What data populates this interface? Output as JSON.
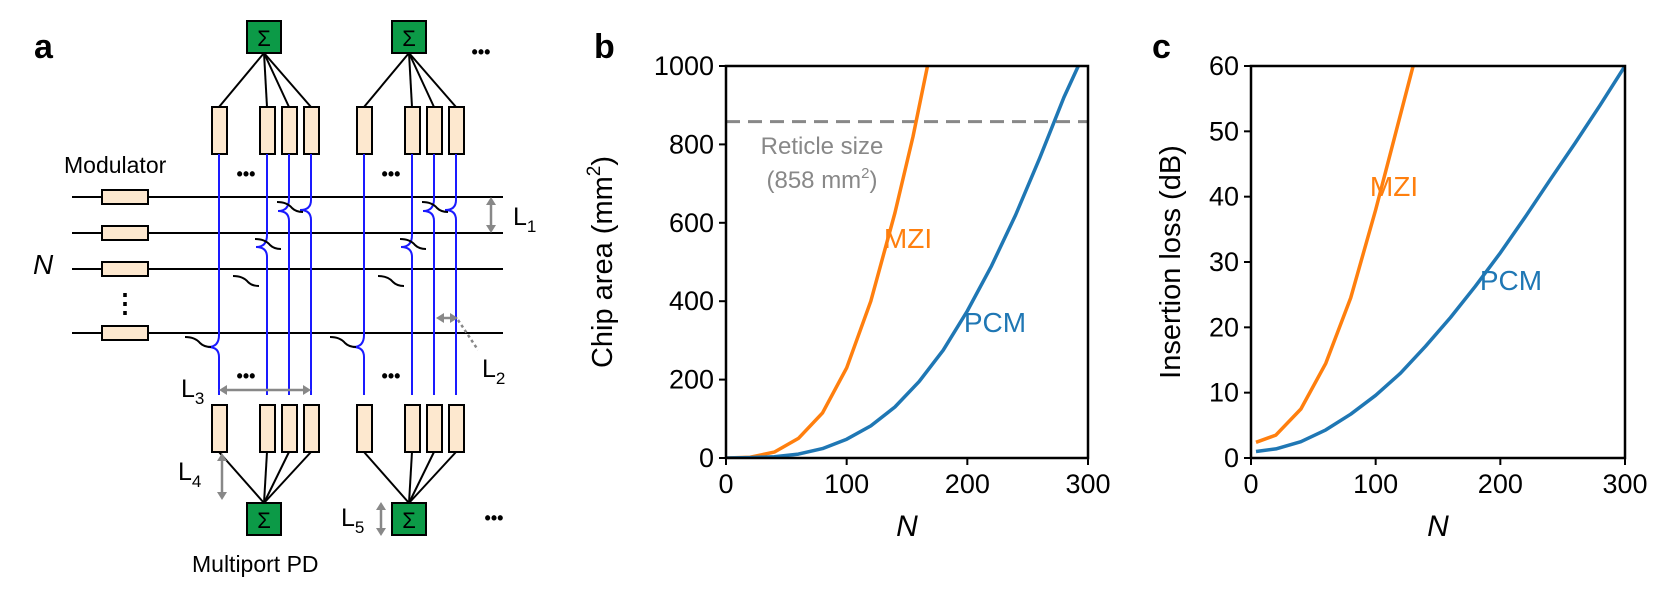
{
  "panels": {
    "a": {
      "label": "a",
      "modulator_label": "Modulator",
      "n_label": "N",
      "vdots": "⋮",
      "ellipsis": "•••",
      "l1_main": "L",
      "l1_sub": "1",
      "l2_main": "L",
      "l2_sub": "2",
      "l3_main": "L",
      "l3_sub": "3",
      "l4_main": "L",
      "l4_sub": "4",
      "l5_main": "L",
      "l5_sub": "5",
      "sum_symbol": "Σ",
      "pd_label": "Multiport PD"
    },
    "b": {
      "label": "b"
    },
    "c": {
      "label": "c"
    }
  },
  "colors": {
    "mzi": "#ff7f0e",
    "pcm": "#1f77b4",
    "reticle": "#888888",
    "waveguide": "#1a1aff",
    "sum_box": "#0c9a47",
    "modulator": "#fde8cf",
    "arrow": "#888888"
  },
  "chart_data": [
    {
      "type": "line",
      "panel": "b",
      "xlabel": "N",
      "ylabel": "Chip area (mm",
      "ylabel_sup": "2",
      "ylabel_close": ")",
      "xlim": [
        0,
        300
      ],
      "ylim": [
        0,
        1000
      ],
      "xticks": [
        "0",
        "100",
        "200",
        "300"
      ],
      "yticks": [
        "0",
        "200",
        "400",
        "600",
        "800",
        "1000"
      ],
      "series": [
        {
          "name": "MZI",
          "x": [
            0,
            20,
            40,
            60,
            80,
            100,
            120,
            140,
            155,
            167
          ],
          "values": [
            0,
            2,
            15,
            50,
            115,
            230,
            400,
            625,
            820,
            1000
          ]
        },
        {
          "name": "PCM",
          "x": [
            0,
            20,
            40,
            60,
            80,
            100,
            120,
            140,
            160,
            180,
            200,
            220,
            240,
            260,
            280,
            292
          ],
          "values": [
            0,
            1,
            3,
            10,
            24,
            48,
            82,
            130,
            195,
            275,
            375,
            490,
            620,
            765,
            920,
            1000
          ]
        }
      ],
      "reticle": {
        "value": 858,
        "label_line1": "Reticle size",
        "label_line2": "(858 mm",
        "label_sup": "2",
        "label_close": ")"
      }
    },
    {
      "type": "line",
      "panel": "c",
      "xlabel": "N",
      "ylabel": "Insertion loss (dB)",
      "xlim": [
        0,
        300
      ],
      "ylim": [
        0,
        60
      ],
      "xticks": [
        "0",
        "100",
        "200",
        "300"
      ],
      "yticks": [
        "0",
        "10",
        "20",
        "30",
        "40",
        "50",
        "60"
      ],
      "series": [
        {
          "name": "MZI",
          "x": [
            4,
            20,
            40,
            60,
            80,
            100,
            115,
            130
          ],
          "values": [
            2.4,
            3.5,
            7.5,
            14.5,
            24.5,
            38,
            49,
            60
          ]
        },
        {
          "name": "PCM",
          "x": [
            4,
            20,
            40,
            60,
            80,
            100,
            120,
            140,
            160,
            180,
            200,
            220,
            240,
            260,
            280,
            300
          ],
          "values": [
            1.0,
            1.4,
            2.5,
            4.3,
            6.7,
            9.6,
            13.0,
            17.1,
            21.5,
            26.3,
            31.4,
            36.9,
            42.6,
            48.2,
            54.0,
            60.0
          ]
        }
      ]
    }
  ]
}
